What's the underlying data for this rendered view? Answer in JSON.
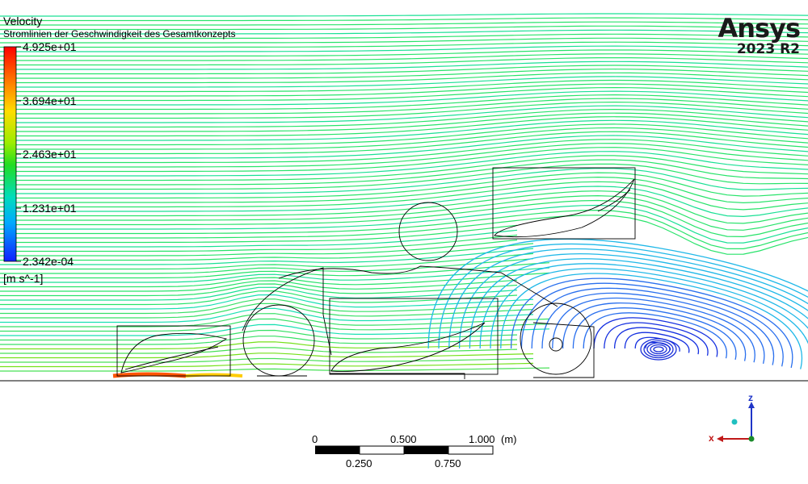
{
  "legend": {
    "title": "Velocity",
    "subtitle": "Stromlinien der Geschwindigkeit des Gesamtkonzepts",
    "ticks": [
      "4.925e+01",
      "3.694e+01",
      "2.463e+01",
      "1.231e+01",
      "2.342e-04"
    ],
    "units": "[m s^-1]",
    "colors": [
      "#ff0000",
      "#ffcc00",
      "#88dd00",
      "#00ee55",
      "#00ddcc",
      "#00aaff",
      "#1133ff"
    ]
  },
  "brand": {
    "name": "Ansys",
    "version": "2023 R2"
  },
  "scale_bar": {
    "top_labels": [
      "0",
      "0.500",
      "1.000"
    ],
    "bottom_labels": [
      "0.250",
      "0.750"
    ],
    "unit": "(m)"
  },
  "axes": {
    "z_label": "z",
    "x_label": "x",
    "z_color": "#1f35c8",
    "x_color": "#c01818"
  }
}
